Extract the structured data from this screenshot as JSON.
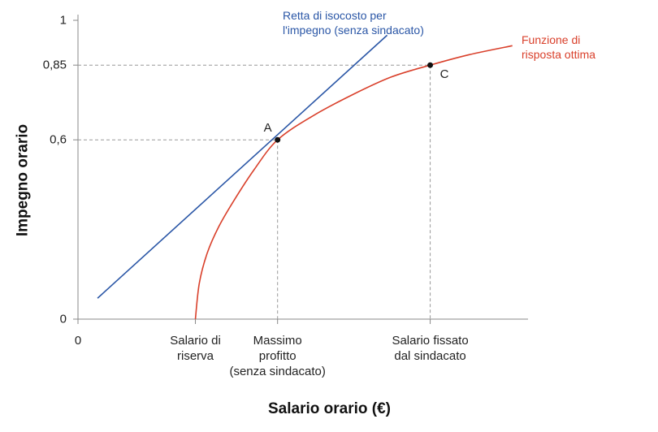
{
  "chart_data": {
    "type": "line",
    "x_label": "Salario orario (€)",
    "y_label": "Impegno orario",
    "xlim": [
      0,
      11.5
    ],
    "ylim": [
      0,
      1
    ],
    "xticks": [
      0,
      {
        "value": 3,
        "label": "Salario di\nriserva"
      },
      {
        "value": 5.1,
        "label": "Massimo\nprofitto\n(senza sindacato)"
      },
      {
        "value": 9,
        "label": "Salario fissato\ndal sindacato"
      }
    ],
    "yticks": [
      0,
      {
        "value": 0.6,
        "label": "0,6"
      },
      {
        "value": 0.85,
        "label": "0,85"
      },
      1
    ],
    "series": [
      {
        "name": "Retta di isocosto per\nl'impegno (senza sindacato)",
        "color": "#2a56a6",
        "x": [
          0.5,
          7.9
        ],
        "values": [
          0.07,
          0.95
        ]
      },
      {
        "name": "Funzione di\nrisposta ottima",
        "color": "#d9402b",
        "x": [
          3,
          3.1,
          3.3,
          3.6,
          4,
          4.5,
          5.1,
          6,
          7,
          8,
          9,
          10,
          11.1
        ],
        "values": [
          0,
          0.12,
          0.22,
          0.31,
          0.4,
          0.5,
          0.6,
          0.68,
          0.75,
          0.81,
          0.85,
          0.885,
          0.915
        ]
      }
    ],
    "points": [
      {
        "label": "A",
        "x": 5.1,
        "y": 0.6
      },
      {
        "label": "C",
        "x": 9,
        "y": 0.85
      }
    ]
  }
}
